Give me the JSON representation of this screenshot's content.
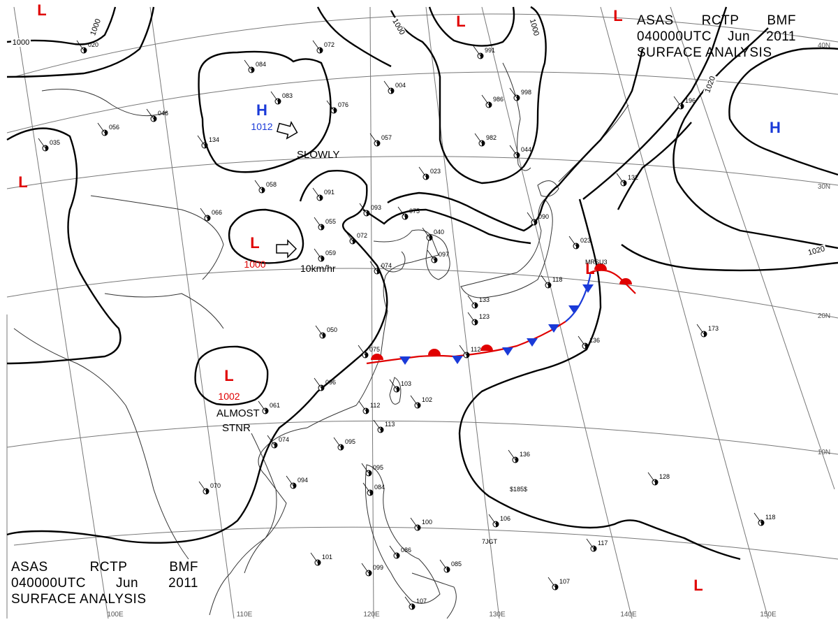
{
  "title": {
    "product": [
      "ASAS",
      "RCTP",
      "BMF"
    ],
    "time": [
      "040000UTC",
      "Jun",
      "2011"
    ],
    "kind": "SURFACE ANALYSIS"
  },
  "colors": {
    "low": "#e00000",
    "high": "#1a3ad8",
    "cold_front": "#1a3ad8",
    "warm_front": "#e00000",
    "isobar": "#000000",
    "grid": "#777777",
    "coast": "#333333"
  },
  "pressure_centers": [
    {
      "id": "h-main",
      "type": "H",
      "value": "1012"
    },
    {
      "id": "h-east",
      "type": "H",
      "value": ""
    },
    {
      "id": "l-central",
      "type": "L",
      "value": "1000"
    },
    {
      "id": "l-south",
      "type": "L",
      "value": "1002"
    },
    {
      "id": "l-front",
      "type": "L",
      "value": ""
    },
    {
      "id": "l-west",
      "type": "L",
      "value": ""
    },
    {
      "id": "l-nw",
      "type": "L",
      "value": ""
    },
    {
      "id": "l-north",
      "type": "L",
      "value": ""
    },
    {
      "id": "l-ne",
      "type": "L",
      "value": ""
    },
    {
      "id": "l-se",
      "type": "L",
      "value": ""
    }
  ],
  "movement": [
    {
      "id": "h-main",
      "text": "SLOWLY"
    },
    {
      "id": "l-central",
      "text": "10km/hr"
    },
    {
      "id": "l-south",
      "text": "ALMOST STNR"
    }
  ],
  "isobar_labels": [
    "1000",
    "1000",
    "1000",
    "1000",
    "1020",
    "1020"
  ],
  "grid_labels": {
    "lat": [
      "40N",
      "30N",
      "20N",
      "10N"
    ],
    "lon": [
      "100E",
      "110E",
      "120E",
      "130E",
      "140E",
      "150E"
    ]
  },
  "station_labels": [
    "020",
    "046",
    "056",
    "035",
    "134",
    "084",
    "072",
    "083",
    "076",
    "057",
    "004",
    "991",
    "986",
    "998",
    "982",
    "023",
    "044",
    "058",
    "091",
    "093",
    "075",
    "066",
    "055",
    "072",
    "040",
    "059",
    "090",
    "097",
    "023",
    "074",
    "132",
    "196",
    "050",
    "075",
    "112",
    "133",
    "123",
    "118",
    "173",
    "136",
    "061",
    "074",
    "095",
    "103",
    "102",
    "112",
    "113",
    "094",
    "070",
    "096",
    "095",
    "084",
    "100",
    "106",
    "136",
    "128",
    "118",
    "117",
    "101",
    "099",
    "086",
    "085",
    "107",
    "107"
  ],
  "annotations": [
    "MRSU3",
    "7JGT",
    "$185$"
  ]
}
